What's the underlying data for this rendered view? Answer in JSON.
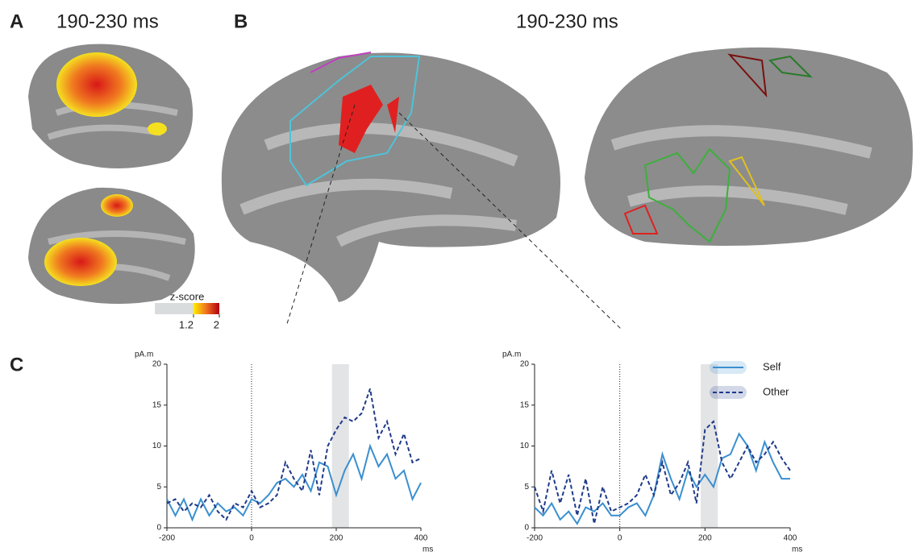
{
  "panel_a": {
    "label": "A",
    "title": "190-230 ms"
  },
  "panel_b": {
    "label": "B",
    "title": "190-230 ms"
  },
  "panel_c": {
    "label": "C"
  },
  "colorbar": {
    "title": "z-score",
    "lim": [
      0,
      2
    ],
    "ticks": [
      1.2,
      2
    ]
  },
  "chart_data": [
    {
      "type": "line",
      "ylabel": "pA.m",
      "xlabel": "ms",
      "xlim": [
        -200,
        400
      ],
      "ylim": [
        0,
        20
      ],
      "xticks": [
        -200,
        0,
        200,
        400
      ],
      "yticks": [
        0,
        5,
        10,
        15,
        20
      ],
      "window": [
        190,
        230
      ],
      "legend": false,
      "x": [
        -200,
        -180,
        -160,
        -140,
        -120,
        -100,
        -80,
        -60,
        -40,
        -20,
        0,
        20,
        40,
        60,
        80,
        100,
        120,
        140,
        160,
        180,
        200,
        220,
        240,
        260,
        280,
        300,
        320,
        340,
        360,
        380,
        400
      ],
      "series": [
        {
          "color": "#3a8fd0",
          "dash": false,
          "values": [
            3.5,
            1.5,
            3.5,
            1,
            3.5,
            1.5,
            3,
            2,
            2.5,
            1.5,
            3.5,
            3,
            4,
            5.5,
            6,
            5,
            6.5,
            4.5,
            8,
            7.5,
            4,
            7,
            9,
            6,
            10,
            7.5,
            9,
            6,
            7,
            3.5,
            5.5
          ]
        },
        {
          "color": "#1f3a8a",
          "dash": true,
          "values": [
            3,
            3.5,
            2,
            3,
            2.5,
            4,
            2,
            1,
            3,
            2.5,
            4.5,
            2.5,
            3,
            4,
            8,
            6,
            4.5,
            9.5,
            4,
            10,
            12,
            13.5,
            13,
            14,
            17,
            11,
            13,
            9,
            11.5,
            8,
            8.5
          ]
        }
      ]
    },
    {
      "type": "line",
      "ylabel": "pA.m",
      "xlabel": "ms",
      "xlim": [
        -200,
        400
      ],
      "ylim": [
        0,
        20
      ],
      "xticks": [
        -200,
        0,
        200,
        400
      ],
      "yticks": [
        0,
        5,
        10,
        15,
        20
      ],
      "window": [
        190,
        230
      ],
      "legend": true,
      "x": [
        -200,
        -180,
        -160,
        -140,
        -120,
        -100,
        -80,
        -60,
        -40,
        -20,
        0,
        20,
        40,
        60,
        80,
        100,
        120,
        140,
        160,
        180,
        200,
        220,
        240,
        260,
        280,
        300,
        320,
        340,
        360,
        380,
        400
      ],
      "series": [
        {
          "name": "Self",
          "color": "#3a8fd0",
          "dash": false,
          "values": [
            2.5,
            1.5,
            3,
            1,
            2,
            0.5,
            2.5,
            2,
            3,
            1.5,
            1.5,
            2.5,
            3,
            1.5,
            4,
            9,
            6,
            3.5,
            7,
            5,
            6.5,
            5,
            8.5,
            9,
            11.5,
            10,
            7,
            10.5,
            8,
            6,
            6
          ]
        },
        {
          "name": "Other",
          "color": "#1f3a8a",
          "dash": true,
          "values": [
            5,
            2,
            7,
            3,
            6.5,
            1.5,
            6,
            0.5,
            5,
            2,
            2.5,
            3,
            4,
            6.5,
            4,
            8,
            4,
            5.5,
            8,
            3,
            12,
            13,
            8,
            6,
            8,
            10,
            8,
            9,
            10.5,
            8.5,
            7
          ]
        }
      ]
    }
  ]
}
